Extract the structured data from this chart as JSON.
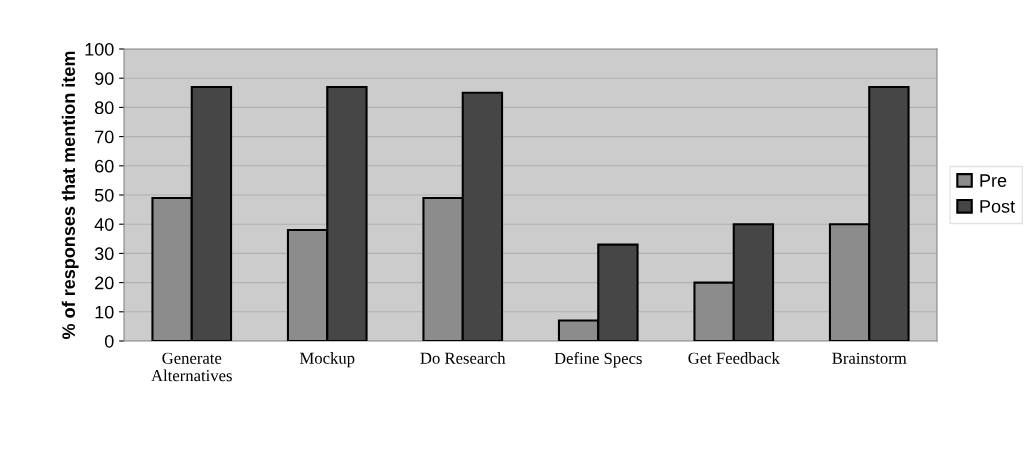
{
  "chart_data": {
    "type": "bar",
    "ylabel": "% of responses that mention item",
    "categories": [
      "Generate\nAlternatives",
      "Mockup",
      "Do Research",
      "Define Specs",
      "Get Feedback",
      "Brainstorm"
    ],
    "series": [
      {
        "name": "Pre",
        "color": "#8c8c8c",
        "values": [
          49,
          38,
          49,
          7,
          20,
          40
        ]
      },
      {
        "name": "Post",
        "color": "#464646",
        "values": [
          87,
          87,
          85,
          33,
          40,
          87
        ]
      }
    ],
    "ylim": [
      0,
      100
    ],
    "yticks": [
      0,
      10,
      20,
      30,
      40,
      50,
      60,
      70,
      80,
      90,
      100
    ],
    "grid": "y",
    "legend": "right"
  }
}
